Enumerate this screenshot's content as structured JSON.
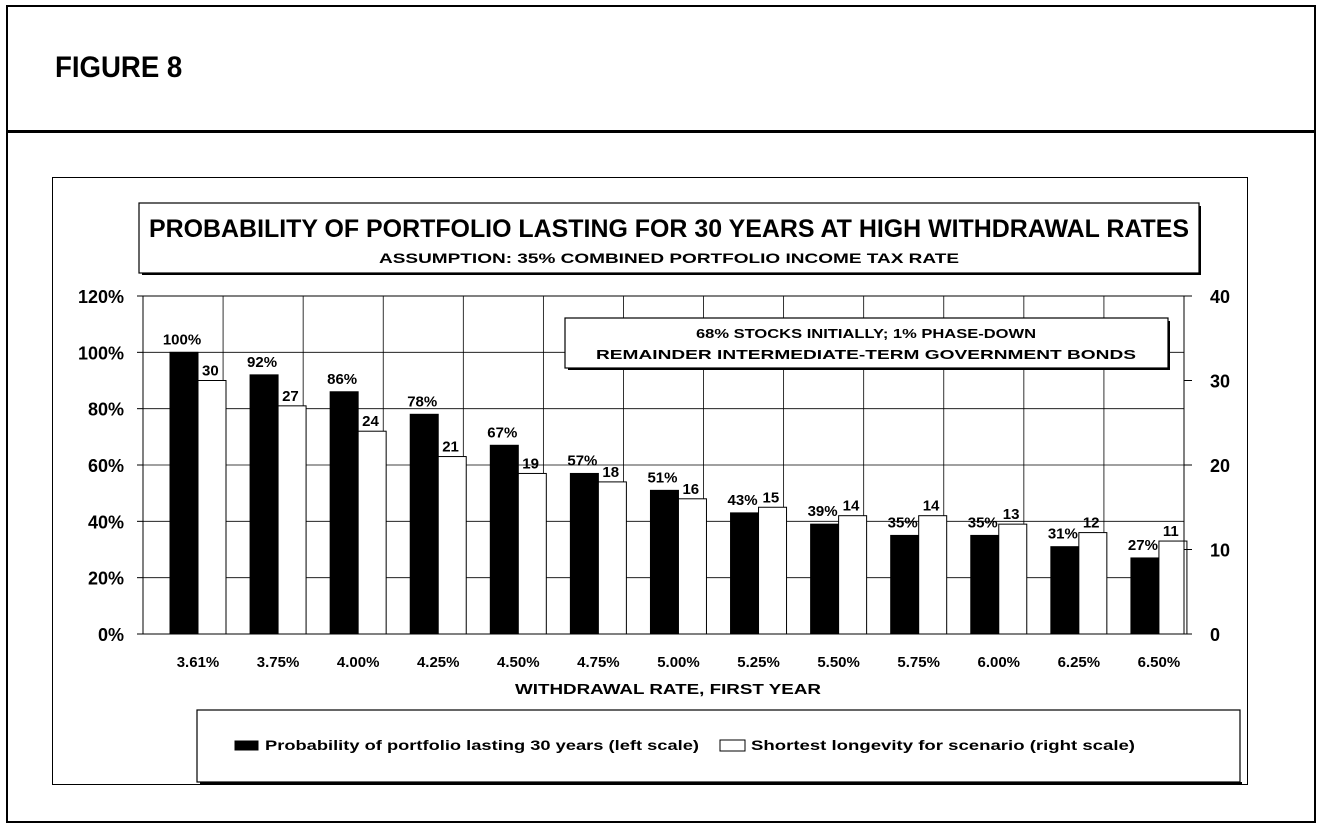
{
  "figure_label": "FIGURE 8",
  "chart_data": {
    "type": "bar",
    "title": "PROBABILITY OF PORTFOLIO LASTING FOR 30 YEARS AT HIGH WITHDRAWAL RATES",
    "subtitle": "ASSUMPTION: 35% COMBINED PORTFOLIO INCOME TAX RATE",
    "annotation": [
      "68% STOCKS INITIALLY; 1% PHASE-DOWN",
      "REMAINDER INTERMEDIATE-TERM GOVERNMENT BONDS"
    ],
    "xlabel": "WITHDRAWAL RATE, FIRST YEAR",
    "categories": [
      "3.61%",
      "3.75%",
      "4.00%",
      "4.25%",
      "4.50%",
      "4.75%",
      "5.00%",
      "5.25%",
      "5.50%",
      "5.75%",
      "6.00%",
      "6.25%",
      "6.50%"
    ],
    "left_axis": {
      "ticks": [
        "0%",
        "20%",
        "40%",
        "60%",
        "80%",
        "100%",
        "120%"
      ],
      "ylim": [
        0,
        120
      ]
    },
    "right_axis": {
      "ticks": [
        "0",
        "10",
        "20",
        "30",
        "40"
      ],
      "ylim": [
        0,
        40
      ]
    },
    "series": [
      {
        "name": "Probability of portfolio lasting 30 years (left scale)",
        "axis": "left",
        "color": "#000000",
        "values": [
          100,
          92,
          86,
          78,
          67,
          57,
          51,
          43,
          39,
          35,
          35,
          31,
          27
        ],
        "labels": [
          "100%",
          "92%",
          "86%",
          "78%",
          "67%",
          "57%",
          "51%",
          "43%",
          "39%",
          "35%",
          "35%",
          "31%",
          "27%"
        ]
      },
      {
        "name": "Shortest longevity for scenario (right scale)",
        "axis": "right",
        "color": "#ffffff",
        "values": [
          30,
          27,
          24,
          21,
          19,
          18,
          16,
          15,
          14,
          14,
          13,
          12,
          11
        ],
        "labels": [
          "30",
          "27",
          "24",
          "21",
          "19",
          "18",
          "16",
          "15",
          "14",
          "14",
          "13",
          "12",
          "11"
        ]
      }
    ]
  }
}
